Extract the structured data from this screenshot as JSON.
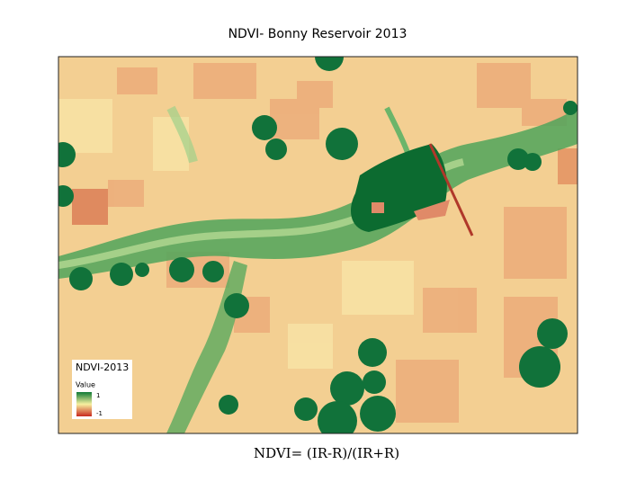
{
  "title": "NDVI- Bonny Reservoir 2013",
  "legend": {
    "title": "NDVI-2013",
    "subtitle": "Value",
    "high": 1,
    "low": -1
  },
  "caption": "NDVI= (IR-R)/(IR+R)"
}
